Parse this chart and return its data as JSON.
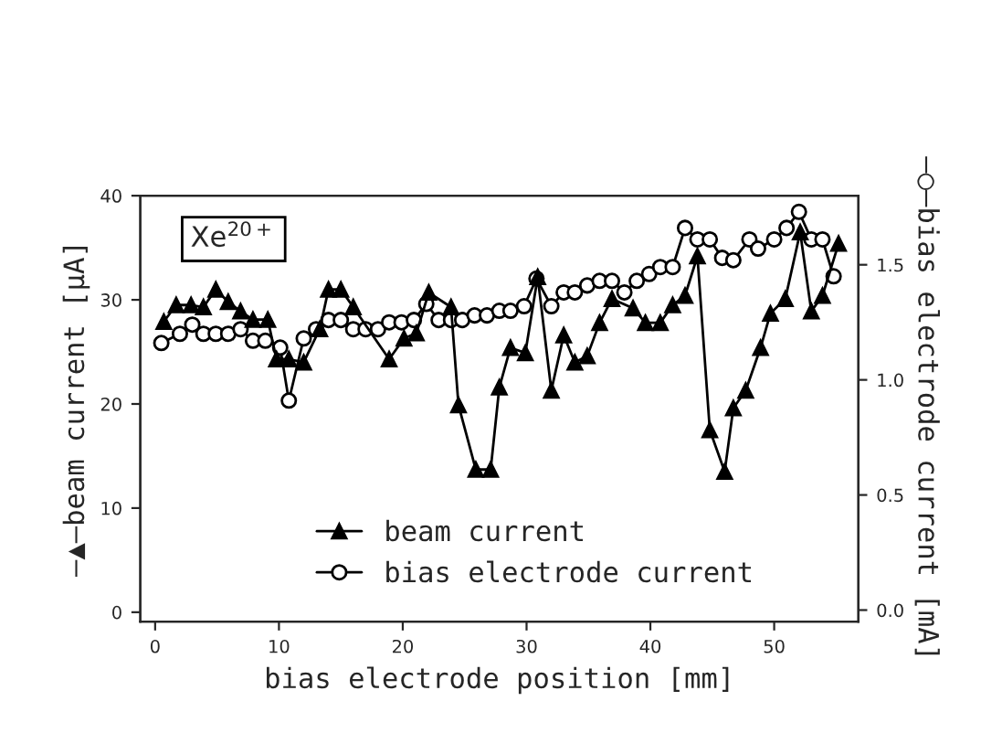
{
  "chart_data": {
    "type": "line",
    "xlabel": "bias electrode position [mm]",
    "ylabel": "–▲–beam current [μA]",
    "y2label": "–○–bias electrode current [mA]",
    "annotations": [
      "Xe$^{20+}$"
    ],
    "xlim": [
      -1.2,
      56.8
    ],
    "xticks": [
      0,
      10,
      20,
      30,
      40,
      50
    ],
    "ylim": [
      -0.9,
      40
    ],
    "yticks": [
      0,
      10,
      20,
      30,
      40
    ],
    "y2lim": [
      -0.05,
      1.8
    ],
    "y2ticks": [
      {
        "value": 0,
        "label": "0.0"
      },
      {
        "value": 0.5,
        "label": "0.5"
      },
      {
        "value": 1,
        "label": "1.0"
      },
      {
        "value": 1.5,
        "label": "1.5"
      }
    ],
    "grid": false,
    "legend": "bottom",
    "line_style": "solid",
    "series": [
      {
        "name": "beam current",
        "color": "#000000",
        "marker": "triangle",
        "x": [
          0.7,
          1.7,
          2.9,
          3.9,
          4.9,
          5.9,
          6.9,
          7.9,
          9.1,
          9.8,
          10.8,
          12,
          13.3,
          14,
          15,
          16,
          18.9,
          20.1,
          21.1,
          22.1,
          23.9,
          24.5,
          25.9,
          27.1,
          27.8,
          28.7,
          29.9,
          30.9,
          32,
          33,
          33.9,
          34.9,
          35.9,
          36.9,
          38.6,
          39.6,
          40.8,
          41.8,
          42.8,
          43.8,
          44.8,
          46,
          46.7,
          47.7,
          48.9,
          49.7,
          50.9,
          52.1,
          53,
          53.9,
          55.2
        ],
        "values": [
          27.9,
          29.5,
          29.5,
          29.3,
          31,
          29.8,
          28.9,
          28.1,
          28.1,
          24.3,
          24.3,
          24,
          27.2,
          31,
          31,
          29.3,
          24.3,
          26.3,
          26.8,
          30.7,
          29.3,
          19.9,
          13.7,
          13.7,
          21.6,
          25.4,
          24.9,
          32.2,
          21.3,
          26.6,
          24,
          24.6,
          27.8,
          30.1,
          29.2,
          27.8,
          27.8,
          29.5,
          30.4,
          34.2,
          17.5,
          13.5,
          19.6,
          21.3,
          25.4,
          28.7,
          30.1,
          36.5,
          28.9,
          30.4,
          35.4
        ]
      },
      {
        "name": "bias electrode current",
        "color": "#000000",
        "marker": "circle",
        "axis": "y2",
        "x": [
          0.5,
          2,
          3,
          3.9,
          4.9,
          5.9,
          6.9,
          7.9,
          8.9,
          10.1,
          10.8,
          12,
          13,
          14,
          15,
          16,
          17,
          18,
          18.9,
          19.9,
          20.9,
          21.9,
          22.9,
          23.9,
          24.8,
          25.8,
          26.8,
          27.8,
          28.7,
          29.8,
          30.8,
          32,
          33,
          33.9,
          34.9,
          35.9,
          36.9,
          37.9,
          38.9,
          39.9,
          40.8,
          41.8,
          42.8,
          43.8,
          44.8,
          45.8,
          46.7,
          48,
          48.7,
          50,
          51,
          52,
          53,
          53.9,
          54.8
        ],
        "values": [
          1.16,
          1.2,
          1.24,
          1.2,
          1.2,
          1.2,
          1.22,
          1.17,
          1.17,
          1.14,
          0.91,
          1.18,
          1.22,
          1.26,
          1.26,
          1.22,
          1.22,
          1.22,
          1.25,
          1.25,
          1.26,
          1.33,
          1.26,
          1.26,
          1.26,
          1.28,
          1.28,
          1.3,
          1.3,
          1.32,
          1.44,
          1.32,
          1.38,
          1.38,
          1.41,
          1.43,
          1.43,
          1.38,
          1.43,
          1.46,
          1.49,
          1.49,
          1.66,
          1.61,
          1.61,
          1.53,
          1.52,
          1.61,
          1.57,
          1.61,
          1.66,
          1.73,
          1.61,
          1.61,
          1.45
        ]
      }
    ]
  }
}
